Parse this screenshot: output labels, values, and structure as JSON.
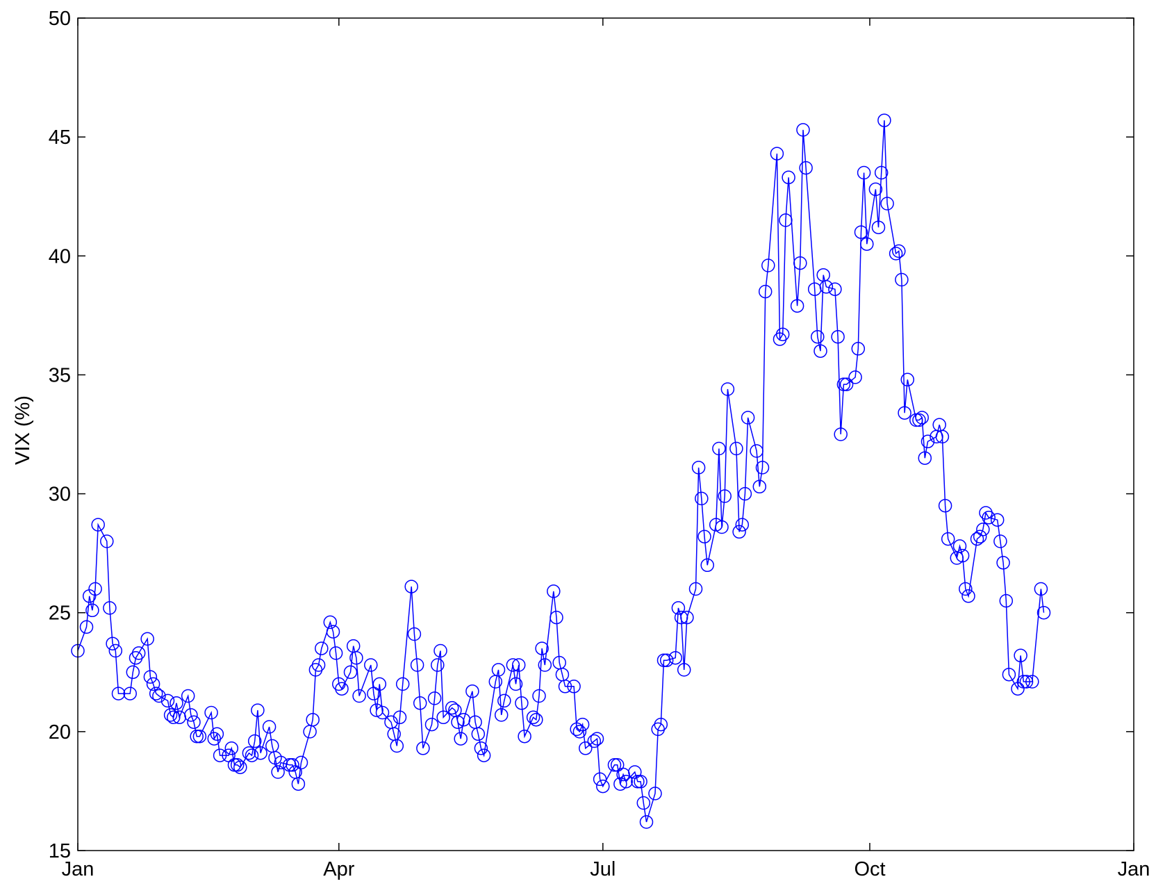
{
  "chart_data": {
    "type": "line",
    "title": "",
    "xlabel": "",
    "ylabel": "VIX (%)",
    "grid": false,
    "legend": "none",
    "marker": "circle-open",
    "line_color": "#0000ff",
    "ylim": [
      15,
      50
    ],
    "yticks": [
      15,
      20,
      25,
      30,
      35,
      40,
      45,
      50
    ],
    "xlim": [
      "Jan 1",
      "Dec 31"
    ],
    "xticks": [
      {
        "day": 1,
        "label": "Jan"
      },
      {
        "day": 91,
        "label": "Apr"
      },
      {
        "day": 182,
        "label": "Jul"
      },
      {
        "day": 274,
        "label": "Oct"
      },
      {
        "day": 365,
        "label": "Jan"
      }
    ],
    "series": [
      {
        "values": [
          [
            1,
            23.4
          ],
          [
            4,
            24.4
          ],
          [
            5,
            25.7
          ],
          [
            6,
            25.1
          ],
          [
            7,
            26.0
          ],
          [
            8,
            28.7
          ],
          [
            11,
            28.0
          ],
          [
            12,
            25.2
          ],
          [
            13,
            23.7
          ],
          [
            14,
            23.4
          ],
          [
            15,
            21.6
          ],
          [
            19,
            21.6
          ],
          [
            20,
            22.5
          ],
          [
            21,
            23.1
          ],
          [
            22,
            23.3
          ],
          [
            25,
            23.9
          ],
          [
            26,
            22.3
          ],
          [
            27,
            22.0
          ],
          [
            28,
            21.6
          ],
          [
            29,
            21.5
          ],
          [
            32,
            21.3
          ],
          [
            33,
            20.7
          ],
          [
            34,
            20.6
          ],
          [
            35,
            21.2
          ],
          [
            36,
            20.6
          ],
          [
            39,
            21.5
          ],
          [
            40,
            20.7
          ],
          [
            41,
            20.4
          ],
          [
            42,
            19.8
          ],
          [
            43,
            19.8
          ],
          [
            47,
            20.8
          ],
          [
            48,
            19.7
          ],
          [
            49,
            19.9
          ],
          [
            50,
            19.0
          ],
          [
            53,
            19.0
          ],
          [
            54,
            19.3
          ],
          [
            55,
            18.6
          ],
          [
            56,
            18.6
          ],
          [
            57,
            18.5
          ],
          [
            60,
            19.1
          ],
          [
            61,
            19.0
          ],
          [
            62,
            19.6
          ],
          [
            63,
            20.9
          ],
          [
            64,
            19.1
          ],
          [
            67,
            20.2
          ],
          [
            68,
            19.4
          ],
          [
            69,
            18.9
          ],
          [
            70,
            18.3
          ],
          [
            71,
            18.7
          ],
          [
            74,
            18.6
          ],
          [
            75,
            18.6
          ],
          [
            76,
            18.3
          ],
          [
            77,
            17.8
          ],
          [
            78,
            18.7
          ],
          [
            81,
            20.0
          ],
          [
            82,
            20.5
          ],
          [
            83,
            22.6
          ],
          [
            84,
            22.8
          ],
          [
            85,
            23.5
          ],
          [
            88,
            24.6
          ],
          [
            89,
            24.2
          ],
          [
            90,
            23.3
          ],
          [
            91,
            22.0
          ],
          [
            92,
            21.8
          ],
          [
            95,
            22.5
          ],
          [
            96,
            23.6
          ],
          [
            97,
            23.1
          ],
          [
            98,
            21.5
          ],
          [
            102,
            22.8
          ],
          [
            103,
            21.6
          ],
          [
            104,
            20.9
          ],
          [
            105,
            22.0
          ],
          [
            106,
            20.8
          ],
          [
            109,
            20.4
          ],
          [
            110,
            19.9
          ],
          [
            111,
            19.4
          ],
          [
            112,
            20.6
          ],
          [
            113,
            22.0
          ],
          [
            116,
            26.1
          ],
          [
            117,
            24.1
          ],
          [
            118,
            22.8
          ],
          [
            119,
            21.2
          ],
          [
            120,
            19.3
          ],
          [
            123,
            20.3
          ],
          [
            124,
            21.4
          ],
          [
            125,
            22.8
          ],
          [
            126,
            23.4
          ],
          [
            127,
            20.6
          ],
          [
            130,
            21.0
          ],
          [
            131,
            20.9
          ],
          [
            132,
            20.4
          ],
          [
            133,
            19.7
          ],
          [
            134,
            20.5
          ],
          [
            137,
            21.7
          ],
          [
            138,
            20.4
          ],
          [
            139,
            19.9
          ],
          [
            140,
            19.3
          ],
          [
            141,
            19.0
          ],
          [
            145,
            22.1
          ],
          [
            146,
            22.6
          ],
          [
            147,
            20.7
          ],
          [
            148,
            21.3
          ],
          [
            151,
            22.8
          ],
          [
            152,
            22.0
          ],
          [
            153,
            22.8
          ],
          [
            154,
            21.2
          ],
          [
            155,
            19.8
          ],
          [
            158,
            20.6
          ],
          [
            159,
            20.5
          ],
          [
            160,
            21.5
          ],
          [
            161,
            23.5
          ],
          [
            162,
            22.8
          ],
          [
            165,
            25.9
          ],
          [
            166,
            24.8
          ],
          [
            167,
            22.9
          ],
          [
            168,
            22.4
          ],
          [
            169,
            21.9
          ],
          [
            172,
            21.9
          ],
          [
            173,
            20.1
          ],
          [
            174,
            20.0
          ],
          [
            175,
            20.3
          ],
          [
            176,
            19.3
          ],
          [
            179,
            19.6
          ],
          [
            180,
            19.7
          ],
          [
            181,
            18.0
          ],
          [
            182,
            17.7
          ],
          [
            186,
            18.6
          ],
          [
            187,
            18.6
          ],
          [
            188,
            17.8
          ],
          [
            189,
            18.2
          ],
          [
            190,
            17.9
          ],
          [
            193,
            18.3
          ],
          [
            194,
            17.9
          ],
          [
            195,
            17.9
          ],
          [
            196,
            17.0
          ],
          [
            197,
            16.2
          ],
          [
            200,
            17.4
          ],
          [
            201,
            20.1
          ],
          [
            202,
            20.3
          ],
          [
            203,
            23.0
          ],
          [
            204,
            23.0
          ],
          [
            207,
            23.1
          ],
          [
            208,
            25.2
          ],
          [
            209,
            24.8
          ],
          [
            210,
            22.6
          ],
          [
            211,
            24.8
          ],
          [
            214,
            26.0
          ],
          [
            215,
            31.1
          ],
          [
            216,
            29.8
          ],
          [
            217,
            28.2
          ],
          [
            218,
            27.0
          ],
          [
            221,
            28.7
          ],
          [
            222,
            31.9
          ],
          [
            223,
            28.6
          ],
          [
            224,
            29.9
          ],
          [
            225,
            34.4
          ],
          [
            228,
            31.9
          ],
          [
            229,
            28.4
          ],
          [
            230,
            28.7
          ],
          [
            231,
            30.0
          ],
          [
            232,
            33.2
          ],
          [
            235,
            31.8
          ],
          [
            236,
            30.3
          ],
          [
            237,
            31.1
          ],
          [
            238,
            38.5
          ],
          [
            239,
            39.6
          ],
          [
            242,
            44.3
          ],
          [
            243,
            36.5
          ],
          [
            244,
            36.7
          ],
          [
            245,
            41.5
          ],
          [
            246,
            43.3
          ],
          [
            249,
            37.9
          ],
          [
            250,
            39.7
          ],
          [
            251,
            45.3
          ],
          [
            252,
            43.7
          ],
          [
            255,
            38.6
          ],
          [
            256,
            36.6
          ],
          [
            257,
            36.0
          ],
          [
            258,
            39.2
          ],
          [
            259,
            38.7
          ],
          [
            262,
            38.6
          ],
          [
            263,
            36.6
          ],
          [
            264,
            32.5
          ],
          [
            265,
            34.6
          ],
          [
            266,
            34.6
          ],
          [
            269,
            34.9
          ],
          [
            270,
            36.1
          ],
          [
            271,
            41.0
          ],
          [
            272,
            43.5
          ],
          [
            273,
            40.5
          ],
          [
            276,
            42.8
          ],
          [
            277,
            41.2
          ],
          [
            278,
            43.5
          ],
          [
            279,
            45.7
          ],
          [
            280,
            42.2
          ],
          [
            283,
            40.1
          ],
          [
            284,
            40.2
          ],
          [
            285,
            39.0
          ],
          [
            286,
            33.4
          ],
          [
            287,
            34.8
          ],
          [
            290,
            33.1
          ],
          [
            291,
            33.1
          ],
          [
            292,
            33.2
          ],
          [
            293,
            31.5
          ],
          [
            294,
            32.2
          ],
          [
            297,
            32.4
          ],
          [
            298,
            32.9
          ],
          [
            299,
            32.4
          ],
          [
            300,
            29.5
          ],
          [
            301,
            28.1
          ],
          [
            304,
            27.3
          ],
          [
            305,
            27.8
          ],
          [
            306,
            27.4
          ],
          [
            307,
            26.0
          ],
          [
            308,
            25.7
          ],
          [
            311,
            28.1
          ],
          [
            312,
            28.2
          ],
          [
            313,
            28.5
          ],
          [
            314,
            29.2
          ],
          [
            315,
            29.0
          ],
          [
            318,
            28.9
          ],
          [
            319,
            28.0
          ],
          [
            320,
            27.1
          ],
          [
            321,
            25.5
          ],
          [
            322,
            22.4
          ],
          [
            325,
            21.8
          ],
          [
            326,
            23.2
          ],
          [
            327,
            22.1
          ],
          [
            328,
            22.1
          ],
          [
            330,
            22.1
          ],
          [
            333,
            26.0
          ],
          [
            334,
            25.0
          ]
        ]
      }
    ]
  }
}
